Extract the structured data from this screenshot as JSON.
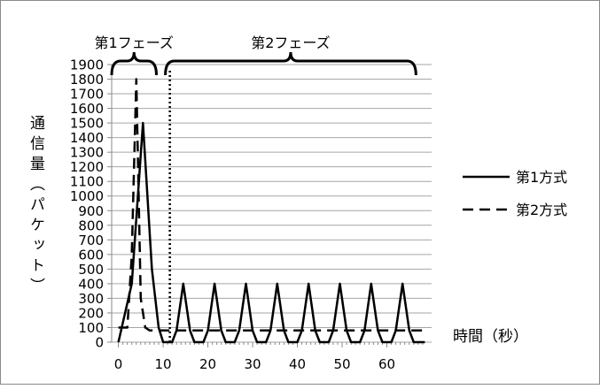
{
  "chart_data": {
    "type": "line",
    "title": "",
    "xlabel": "時間（秒）",
    "ylabel": "通信量（パケット）",
    "xlim": [
      -1.5,
      70
    ],
    "xticks": [
      0,
      10,
      20,
      30,
      40,
      50,
      60
    ],
    "ylim": [
      0,
      1900
    ],
    "yticks": [
      0,
      100,
      200,
      300,
      400,
      500,
      600,
      700,
      800,
      900,
      1000,
      1100,
      1200,
      1300,
      1400,
      1500,
      1600,
      1700,
      1800,
      1900
    ],
    "grid": true,
    "legend_position": "right",
    "phases": [
      {
        "label": "第1フェーズ",
        "x_start": -1.5,
        "x_end": 8.5
      },
      {
        "label": "第2フェーズ",
        "x_start": 10.5,
        "x_end": 66.5
      }
    ],
    "phase_boundary_x": 11.5,
    "series": [
      {
        "name": "第1方式",
        "style": "solid",
        "x": [
          0,
          3,
          5.5,
          7.5,
          9,
          10,
          12,
          13,
          14.5,
          16,
          17,
          19,
          20,
          21.5,
          23,
          24,
          26,
          27,
          28.5,
          30,
          31,
          33,
          34,
          35.5,
          37,
          38,
          40,
          41,
          42.5,
          44,
          45,
          47,
          48,
          49.5,
          51,
          52,
          54,
          55,
          56.5,
          58,
          59,
          61,
          62,
          63.5,
          65,
          66,
          68.5
        ],
        "y": [
          0,
          400,
          1500,
          500,
          100,
          0,
          0,
          80,
          400,
          80,
          0,
          0,
          80,
          400,
          80,
          0,
          0,
          80,
          400,
          80,
          0,
          0,
          80,
          400,
          80,
          0,
          0,
          80,
          400,
          80,
          0,
          0,
          80,
          400,
          80,
          0,
          0,
          80,
          400,
          80,
          0,
          0,
          80,
          400,
          80,
          0,
          0
        ]
      },
      {
        "name": "第2方式",
        "style": "dashed",
        "x": [
          0,
          2,
          3,
          4,
          5,
          6,
          7,
          68.5
        ],
        "y": [
          100,
          100,
          600,
          1800,
          300,
          100,
          80,
          80
        ]
      }
    ]
  }
}
